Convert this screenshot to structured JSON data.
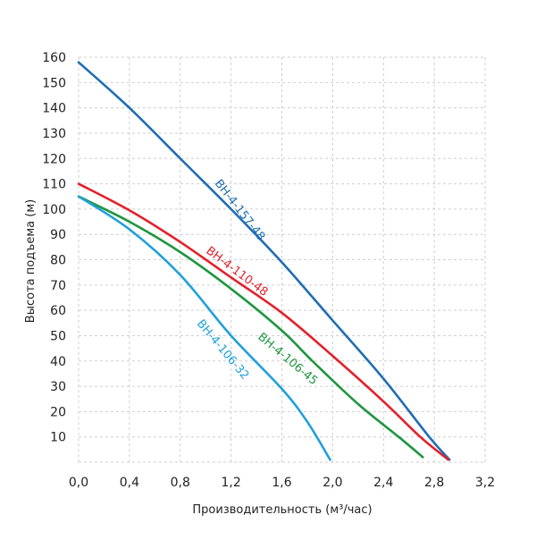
{
  "chart_data": {
    "type": "line",
    "title": "",
    "xlabel": "Производительность (м³/час)",
    "ylabel": "Высота подъема (м)",
    "xlim": [
      0,
      3.2
    ],
    "ylim": [
      0,
      160
    ],
    "grid": true,
    "x_ticks": [
      "0,0",
      "0,4",
      "0,8",
      "1,2",
      "1,6",
      "2,0",
      "2,4",
      "2,8",
      "3,2"
    ],
    "x_tick_values": [
      0,
      0.4,
      0.8,
      1.2,
      1.6,
      2.0,
      2.4,
      2.8,
      3.2
    ],
    "y_ticks": [
      "10",
      "20",
      "30",
      "40",
      "50",
      "60",
      "70",
      "80",
      "90",
      "100",
      "110",
      "120",
      "130",
      "140",
      "150",
      "160"
    ],
    "y_tick_values": [
      10,
      20,
      30,
      40,
      50,
      60,
      70,
      80,
      90,
      100,
      110,
      120,
      130,
      140,
      150,
      160
    ],
    "series": [
      {
        "name": "BH-4-157-48",
        "color": "#1f6db4",
        "x": [
          0,
          0.4,
          0.8,
          1.2,
          1.6,
          2.0,
          2.4,
          2.76,
          2.92
        ],
        "y": [
          158,
          140,
          120,
          100,
          79,
          56,
          33,
          10,
          1
        ]
      },
      {
        "name": "BH-4-110-48",
        "color": "#e3202a",
        "x": [
          0,
          0.4,
          0.8,
          1.2,
          1.6,
          2.0,
          2.4,
          2.69,
          2.91
        ],
        "y": [
          110,
          99.5,
          87,
          73,
          59,
          42,
          24,
          10,
          1
        ]
      },
      {
        "name": "BH-4-106-45",
        "color": "#1e9640",
        "x": [
          0,
          0.4,
          0.8,
          1.2,
          1.6,
          1.84,
          2.2,
          2.52,
          2.71
        ],
        "y": [
          105,
          95,
          83,
          68.5,
          52,
          40,
          23,
          10,
          2
        ]
      },
      {
        "name": "BH-4-106-32",
        "color": "#1ea0dc",
        "x": [
          0,
          0.4,
          0.8,
          1.2,
          1.6,
          1.8,
          1.98
        ],
        "y": [
          105,
          92,
          74,
          50,
          29,
          16,
          1
        ]
      }
    ]
  }
}
